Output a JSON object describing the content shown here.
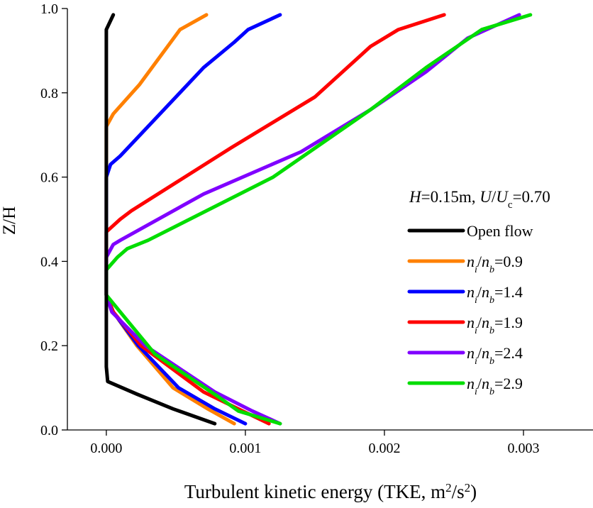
{
  "chart_data": {
    "type": "line",
    "title": "",
    "xlabel_main": "Turbulent kinetic energy (TKE, m",
    "xlabel_sup1": "2",
    "xlabel_mid": "/s",
    "xlabel_sup2": "2",
    "xlabel_end": ")",
    "ylabel": "Z/H",
    "xlim": [
      -0.00028,
      0.0035
    ],
    "ylim": [
      0.0,
      1.0
    ],
    "xticks": [
      {
        "value": 0.0,
        "label": "0.000"
      },
      {
        "value": 0.001,
        "label": "0.001"
      },
      {
        "value": 0.002,
        "label": "0.002"
      },
      {
        "value": 0.003,
        "label": "0.003"
      }
    ],
    "yticks": [
      {
        "value": 0.0,
        "label": "0.0"
      },
      {
        "value": 0.2,
        "label": "0.2"
      },
      {
        "value": 0.4,
        "label": "0.4"
      },
      {
        "value": 0.6,
        "label": "0.6"
      },
      {
        "value": 0.8,
        "label": "0.8"
      },
      {
        "value": 1.0,
        "label": "1.0"
      }
    ],
    "legend_header": {
      "h": "H",
      "h_value": "=0.15m, ",
      "u": "U",
      "slash": "/",
      "uc": "U",
      "uc_sub": "c",
      "ratio_value": "=0.70"
    },
    "series": [
      {
        "name": "Open flow",
        "label": {
          "plain": "Open flow"
        },
        "color": "#000000",
        "points": [
          [
            0.00078,
            0.015
          ],
          [
            0.00048,
            0.05
          ],
          [
            0.00022,
            0.085
          ],
          [
            1e-05,
            0.115
          ],
          [
            0.0,
            0.15
          ],
          [
            0.0,
            0.3
          ],
          [
            0.0,
            0.5
          ],
          [
            0.0,
            0.7
          ],
          [
            0.0,
            0.95
          ],
          [
            5e-05,
            0.985
          ]
        ]
      },
      {
        "name": "n_i/n_b=0.9",
        "label": {
          "n1": "n",
          "s1": "i",
          "sl": "/",
          "n2": "n",
          "s2": "b",
          "val": "=0.9"
        },
        "color": "#ff8000",
        "points": [
          [
            0.00092,
            0.015
          ],
          [
            0.00073,
            0.05
          ],
          [
            0.00048,
            0.1
          ],
          [
            0.00022,
            0.2
          ],
          [
            5e-05,
            0.28
          ],
          [
            0.0,
            0.32
          ],
          [
            0.0,
            0.4
          ],
          [
            0.0,
            0.6
          ],
          [
            0.0,
            0.72
          ],
          [
            5e-05,
            0.75
          ],
          [
            0.00024,
            0.82
          ],
          [
            0.00053,
            0.95
          ],
          [
            0.00072,
            0.985
          ]
        ]
      },
      {
        "name": "n_i/n_b=1.4",
        "label": {
          "n1": "n",
          "s1": "i",
          "sl": "/",
          "n2": "n",
          "s2": "b",
          "val": "=1.4"
        },
        "color": "#0000ff",
        "points": [
          [
            0.001,
            0.015
          ],
          [
            0.00078,
            0.05
          ],
          [
            0.00052,
            0.1
          ],
          [
            0.00023,
            0.2
          ],
          [
            5e-05,
            0.28
          ],
          [
            0.0,
            0.32
          ],
          [
            0.0,
            0.4
          ],
          [
            0.0,
            0.6
          ],
          [
            3e-05,
            0.63
          ],
          [
            0.0001,
            0.65
          ],
          [
            0.0007,
            0.86
          ],
          [
            0.00092,
            0.92
          ],
          [
            0.00102,
            0.95
          ],
          [
            0.00125,
            0.985
          ]
        ]
      },
      {
        "name": "n_i/n_b=1.9",
        "label": {
          "n1": "n",
          "s1": "i",
          "sl": "/",
          "n2": "n",
          "s2": "b",
          "val": "=1.9"
        },
        "color": "#ff0000",
        "points": [
          [
            0.00117,
            0.015
          ],
          [
            0.00098,
            0.045
          ],
          [
            0.0007,
            0.09
          ],
          [
            0.00025,
            0.2
          ],
          [
            5e-05,
            0.28
          ],
          [
            0.0,
            0.32
          ],
          [
            0.0,
            0.4
          ],
          [
            0.0,
            0.47
          ],
          [
            0.0001,
            0.5
          ],
          [
            0.00018,
            0.52
          ],
          [
            0.0009,
            0.67
          ],
          [
            0.0015,
            0.79
          ],
          [
            0.0019,
            0.91
          ],
          [
            0.0021,
            0.95
          ],
          [
            0.00243,
            0.985
          ]
        ]
      },
      {
        "name": "n_i/n_b=2.4",
        "label": {
          "n1": "n",
          "s1": "i",
          "sl": "/",
          "n2": "n",
          "s2": "b",
          "val": "=2.4"
        },
        "color": "#8000ff",
        "points": [
          [
            0.00125,
            0.015
          ],
          [
            0.00105,
            0.045
          ],
          [
            0.00078,
            0.09
          ],
          [
            0.00028,
            0.2
          ],
          [
            4e-05,
            0.28
          ],
          [
            0.0,
            0.32
          ],
          [
            0.0,
            0.38
          ],
          [
            0.0,
            0.41
          ],
          [
            5e-05,
            0.44
          ],
          [
            0.0001,
            0.45
          ],
          [
            0.0007,
            0.56
          ],
          [
            0.0014,
            0.66
          ],
          [
            0.0019,
            0.76
          ],
          [
            0.0023,
            0.85
          ],
          [
            0.0026,
            0.93
          ],
          [
            0.00297,
            0.985
          ]
        ]
      },
      {
        "name": "n_i/n_b=2.9",
        "label": {
          "n1": "n",
          "s1": "i",
          "sl": "/",
          "n2": "n",
          "s2": "b",
          "val": "=2.9"
        },
        "color": "#00dd00",
        "points": [
          [
            0.00125,
            0.015
          ],
          [
            0.00095,
            0.045
          ],
          [
            0.0008,
            0.08
          ],
          [
            0.00035,
            0.18
          ],
          [
            0.0001,
            0.28
          ],
          [
            0.0,
            0.32
          ],
          [
            0.0,
            0.36
          ],
          [
            0.0,
            0.38
          ],
          [
            8e-05,
            0.41
          ],
          [
            0.00015,
            0.43
          ],
          [
            0.0003,
            0.45
          ],
          [
            0.0012,
            0.6
          ],
          [
            0.0019,
            0.76
          ],
          [
            0.0023,
            0.86
          ],
          [
            0.0027,
            0.95
          ],
          [
            0.00305,
            0.985
          ]
        ]
      }
    ]
  }
}
